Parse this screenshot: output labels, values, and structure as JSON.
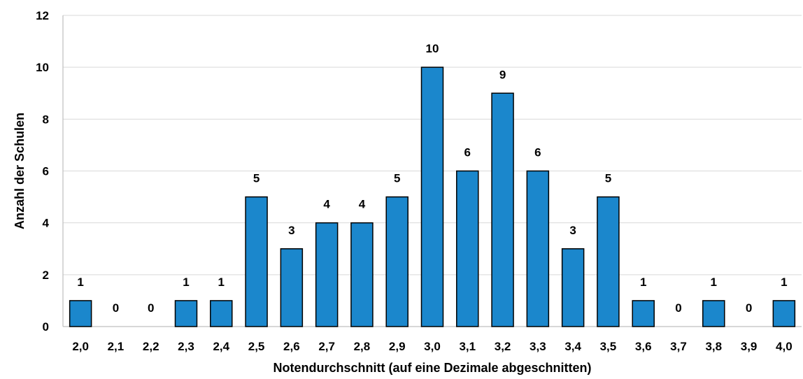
{
  "chart_data": {
    "type": "bar",
    "categories": [
      "2,0",
      "2,1",
      "2,2",
      "2,3",
      "2,4",
      "2,5",
      "2,6",
      "2,7",
      "2,8",
      "2,9",
      "3,0",
      "3,1",
      "3,2",
      "3,3",
      "3,4",
      "3,5",
      "3,6",
      "3,7",
      "3,8",
      "3,9",
      "4,0"
    ],
    "values": [
      1,
      0,
      0,
      1,
      1,
      5,
      3,
      4,
      4,
      5,
      10,
      6,
      9,
      6,
      3,
      5,
      1,
      0,
      1,
      0,
      1
    ],
    "data_labels": [
      "1",
      "0",
      "0",
      "1",
      "1",
      "5",
      "3",
      "4",
      "4",
      "5",
      "10",
      "6",
      "9",
      "6",
      "3",
      "5",
      "1",
      "0",
      "1",
      "0",
      "1"
    ],
    "xlabel": "Notendurchschnitt (auf eine Dezimale abgeschnitten)",
    "ylabel": "Anzahl der Schulen",
    "ylim": [
      0,
      12
    ],
    "yticks": [
      "0",
      "2",
      "4",
      "6",
      "8",
      "10",
      "12"
    ],
    "grid": true,
    "bar_color": "#1b87cc"
  }
}
